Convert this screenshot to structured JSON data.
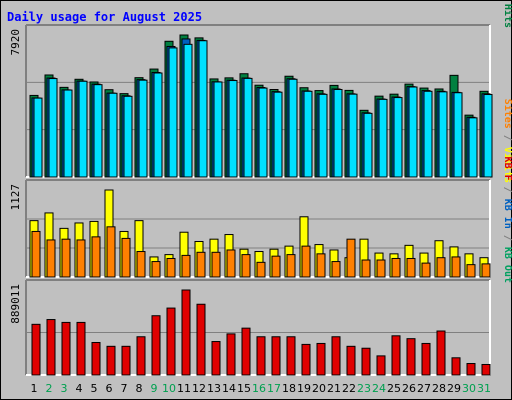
{
  "chart_data": {
    "type": "bar",
    "title": "Daily usage for August 2025",
    "categories": [
      "1",
      "2",
      "3",
      "4",
      "5",
      "6",
      "7",
      "8",
      "9",
      "10",
      "11",
      "12",
      "13",
      "14",
      "15",
      "16",
      "17",
      "18",
      "19",
      "20",
      "21",
      "22",
      "23",
      "24",
      "25",
      "26",
      "27",
      "28",
      "29",
      "30",
      "31"
    ],
    "weekend_days": [
      "2",
      "3",
      "9",
      "10",
      "16",
      "17",
      "23",
      "24",
      "30",
      "31"
    ],
    "panels": [
      {
        "id": "hits-files-pages",
        "max_label": "7920",
        "axis_label_parts": [
          {
            "text": "Pages",
            "color": "#00e0ff"
          },
          {
            "text": " / ",
            "color": "#808080"
          },
          {
            "text": "Files",
            "color": "#0060c0"
          },
          {
            "text": " / ",
            "color": "#808080"
          },
          {
            "text": "Hits",
            "color": "#008040"
          }
        ],
        "ymax": 7920,
        "series": [
          {
            "name": "Hits",
            "color": "#008040",
            "values": [
              4550,
              5690,
              5000,
              5450,
              5300,
              4870,
              4650,
              5540,
              6020,
              7570,
              7920,
              7760,
              5470,
              5530,
              5760,
              5120,
              4880,
              5620,
              4980,
              4820,
              5110,
              4830,
              3720,
              4510,
              4620,
              5180,
              4960,
              4910,
              5670,
              3450,
              4780
            ]
          },
          {
            "name": "Files",
            "color": "#0060c0",
            "values": [
              4410,
              5520,
              4860,
              5350,
              5180,
              4680,
              4530,
              5430,
              5830,
              7280,
              7700,
              7620,
              5310,
              5400,
              5520,
              4990,
              4760,
              5480,
              4800,
              4640,
              4910,
              4640,
              3580,
              4350,
              4460,
              5040,
              4820,
              4780,
              4720,
              3330,
              4640
            ]
          },
          {
            "name": "Pages",
            "color": "#00e0ff",
            "values": [
              4400,
              5490,
              4850,
              5340,
              5150,
              4670,
              4500,
              5400,
              5800,
              7200,
              7400,
              7600,
              5300,
              5380,
              5500,
              4960,
              4730,
              5450,
              4780,
              4610,
              4880,
              4620,
              3550,
              4330,
              4430,
              5020,
              4780,
              4750,
              4700,
              3300,
              4600
            ]
          }
        ]
      },
      {
        "id": "visits-sites",
        "max_label": "1127",
        "axis_label_parts": [
          {
            "text": "Sites",
            "color": "#ff8000"
          },
          {
            "text": " / ",
            "color": "#808080"
          },
          {
            "text": "Visits",
            "color": "#ffff00"
          }
        ],
        "ymax": 1127,
        "series": [
          {
            "name": "Visits",
            "color": "#ffff00",
            "values": [
              730,
              830,
              630,
              700,
              720,
              1127,
              590,
              730,
              260,
              290,
              580,
              460,
              490,
              550,
              360,
              330,
              360,
              400,
              780,
              420,
              350,
              250,
              490,
              310,
              300,
              410,
              310,
              470,
              390,
              300,
              250
            ]
          },
          {
            "name": "Sites",
            "color": "#ff8000",
            "values": [
              590,
              480,
              490,
              480,
              520,
              650,
              500,
              330,
              200,
              240,
              280,
              320,
              320,
              350,
              290,
              190,
              270,
              290,
              400,
              300,
              200,
              490,
              220,
              220,
              240,
              240,
              180,
              250,
              260,
              160,
              170
            ]
          }
        ]
      },
      {
        "id": "kbytes",
        "max_label": "889011",
        "axis_label_parts": [
          {
            "text": "KB F",
            "color": "#e00000"
          },
          {
            "text": " / ",
            "color": "#808080"
          },
          {
            "text": "KB In",
            "color": "#0060c0"
          },
          {
            "text": " / ",
            "color": "#808080"
          },
          {
            "text": "KB Out",
            "color": "#00a060"
          }
        ],
        "ymax": 889011,
        "series": [
          {
            "name": "KB F",
            "color": "#e00000",
            "values": [
              530000,
              580000,
              550000,
              550000,
              340000,
              300000,
              300000,
              400000,
              620000,
              700000,
              889011,
              740000,
              350000,
              430000,
              490000,
              400000,
              400000,
              400000,
              320000,
              330000,
              400000,
              300000,
              280000,
              200000,
              410000,
              380000,
              330000,
              460000,
              180000,
              120000,
              110000
            ]
          }
        ]
      }
    ]
  }
}
